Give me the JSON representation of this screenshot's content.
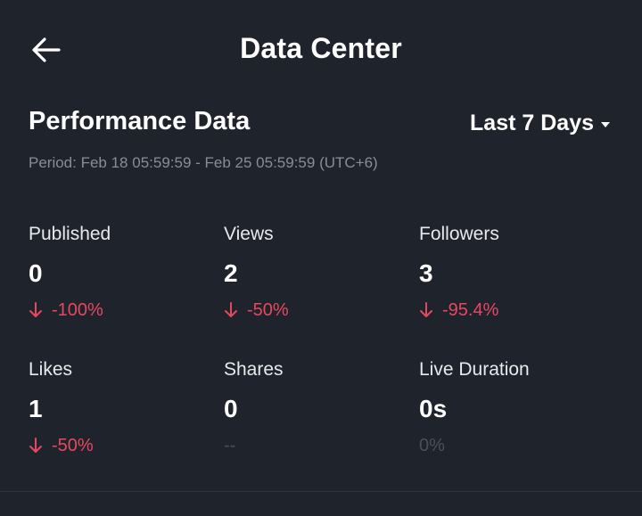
{
  "header": {
    "title": "Data Center",
    "back_icon": "arrow-left-icon"
  },
  "performance": {
    "title": "Performance Data",
    "range_label": "Last 7 Days",
    "period": "Period: Feb 18 05:59:59 - Feb 25 05:59:59 (UTC+6)"
  },
  "metrics": [
    {
      "label": "Published",
      "value": "0",
      "change": "-100%",
      "trend": "down"
    },
    {
      "label": "Views",
      "value": "2",
      "change": "-50%",
      "trend": "down"
    },
    {
      "label": "Followers",
      "value": "3",
      "change": "-95.4%",
      "trend": "down"
    },
    {
      "label": "Likes",
      "value": "1",
      "change": "-50%",
      "trend": "down"
    },
    {
      "label": "Shares",
      "value": "0",
      "change": "--",
      "trend": "none"
    },
    {
      "label": "Live Duration",
      "value": "0s",
      "change": "0%",
      "trend": "none"
    }
  ],
  "colors": {
    "background": "#1f232c",
    "negative": "#e8485f",
    "muted": "#8a8d94"
  }
}
